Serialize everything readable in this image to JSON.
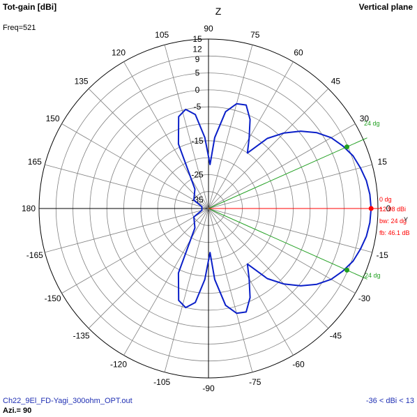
{
  "header": {
    "title_left": "Tot-gain [dBi]",
    "title_right": "Vertical plane",
    "freq": "Freq=521"
  },
  "footer": {
    "filename": "Ch22_9El_FD-Yagi_300ohm_OPT.out",
    "azi": "Azi.= 90",
    "range": "-36 < dBi < 13"
  },
  "colors": {
    "pattern": "#0a1fc8",
    "max_line": "#ff0000",
    "beam_lines": "#22a022",
    "grid": "#808080",
    "text_blue": "#1f2fb3"
  },
  "chart_data": {
    "type": "polar",
    "title": "Tot-gain [dBi]",
    "subtitle": "Vertical plane",
    "angle_labels": [
      "90",
      "75",
      "60",
      "45",
      "30",
      "15",
      "0",
      "-15",
      "-30",
      "-45",
      "-60",
      "-75",
      "-90",
      "-105",
      "-120",
      "-135",
      "-150",
      "-165",
      "180",
      "165",
      "150",
      "135",
      "120",
      "105"
    ],
    "radial_labels": [
      "15",
      "12",
      "9",
      "5",
      "0",
      "-5",
      "-15",
      "-25",
      "-35"
    ],
    "z_label": "Z",
    "r_min_dbi": -36,
    "r_max_dbi": 13,
    "max_gain_label": "12.98 dBi",
    "max_angle_label": "0 dg",
    "beamwidth_label": "bw: 24 dg",
    "fb_label": "fb: 46.1 dB",
    "beam_upper_label": "24 dg",
    "beam_lower_label": "-24 dg",
    "y_axis_label": "Y",
    "pattern": {
      "name": "Tot-gain",
      "points": [
        [
          0,
          12.98
        ],
        [
          5,
          12.8
        ],
        [
          10,
          12.3
        ],
        [
          15,
          11.4
        ],
        [
          20,
          10.4
        ],
        [
          25,
          8.7
        ],
        [
          30,
          6.8
        ],
        [
          35,
          4.0
        ],
        [
          40,
          0.5
        ],
        [
          45,
          -3.5
        ],
        [
          50,
          -8
        ],
        [
          55,
          -15
        ],
        [
          60,
          -11
        ],
        [
          65,
          -6
        ],
        [
          70,
          -2.5
        ],
        [
          75,
          -3
        ],
        [
          80,
          -6
        ],
        [
          85,
          -14
        ],
        [
          88,
          -22
        ],
        [
          93,
          -14
        ],
        [
          98,
          -7
        ],
        [
          103,
          -5
        ],
        [
          108,
          -6.5
        ],
        [
          115,
          -14
        ],
        [
          125,
          -28
        ],
        [
          150,
          -30
        ],
        [
          165,
          -33
        ],
        [
          180,
          -33
        ]
      ]
    }
  }
}
